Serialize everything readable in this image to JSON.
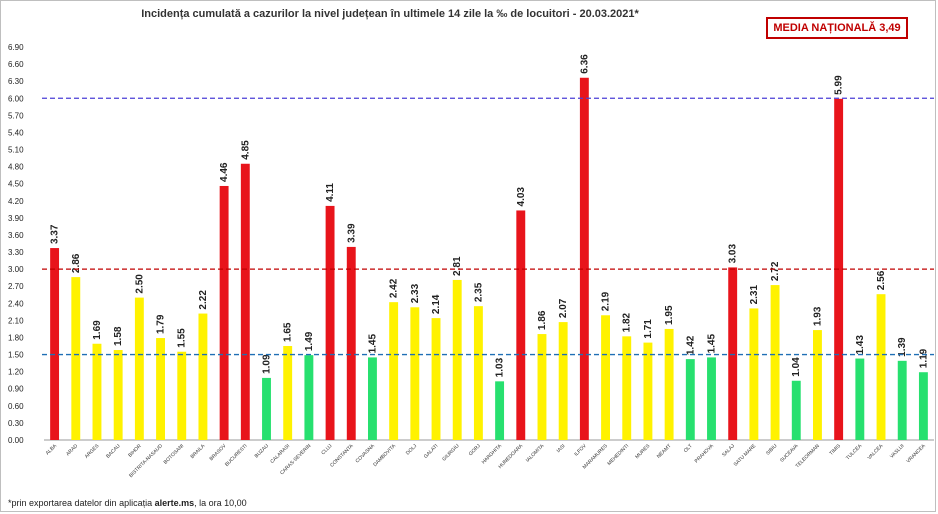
{
  "chart_data": {
    "type": "bar",
    "title": "Incidența cumulată a cazurilor la nivel județean în ultimele 14 zile la ‰ de locuitori - 20.03.2021*",
    "national_average_label": "MEDIA NAȚIONALĂ 3,49",
    "footnote_prefix": "*prin exportarea datelor din aplicația ",
    "footnote_app": "alerte.ms",
    "footnote_suffix": ", la ora 10,00",
    "ylim": [
      0,
      6.9
    ],
    "yticks": [
      "0.00",
      "0.30",
      "0.60",
      "0.90",
      "1.20",
      "1.50",
      "1.80",
      "2.10",
      "2.40",
      "2.70",
      "3.00",
      "3.30",
      "3.60",
      "3.90",
      "4.20",
      "4.50",
      "4.80",
      "5.10",
      "5.40",
      "5.70",
      "6.00",
      "6.30",
      "6.60",
      "6.90"
    ],
    "thresholds": [
      {
        "value": 6.0,
        "color": "#4b3fd6"
      },
      {
        "value": 3.0,
        "color": "#c00000"
      },
      {
        "value": 1.5,
        "color": "#1f6fb5"
      }
    ],
    "colors": {
      "red": "#e8141b",
      "yellow": "#fff200",
      "green": "#27e06f"
    },
    "categories": [
      "ALBA",
      "ARAD",
      "ARGES",
      "BACAU",
      "BIHOR",
      "BISTRITA-NASAUD",
      "BOTOSANI",
      "BRAILA",
      "BRASOV",
      "BUCURESTI",
      "BUZAU",
      "CALARASI",
      "CARAS-SEVERIN",
      "CLUJ",
      "CONSTANTA",
      "COVASNA",
      "DAMBOVITA",
      "DOLJ",
      "GALATI",
      "GIURGIU",
      "GORJ",
      "HARGHITA",
      "HUNEDOARA",
      "IALOMITA",
      "IASI",
      "ILFOV",
      "MARAMURES",
      "MEHEDINTI",
      "MURES",
      "NEAMT",
      "OLT",
      "PRAHOVA",
      "SALAJ",
      "SATU MARE",
      "SIBIU",
      "SUCEAVA",
      "TELEORMAN",
      "TIMIS",
      "TULCEA",
      "VALCEA",
      "VASLUI",
      "VRANCEA"
    ],
    "values": [
      3.37,
      2.86,
      1.69,
      1.58,
      2.5,
      1.79,
      1.55,
      2.22,
      4.46,
      4.85,
      1.09,
      1.65,
      1.49,
      4.11,
      3.39,
      1.45,
      2.42,
      2.33,
      2.14,
      2.81,
      2.35,
      1.03,
      4.03,
      1.86,
      2.07,
      6.36,
      2.19,
      1.82,
      1.71,
      1.95,
      1.42,
      1.45,
      3.03,
      2.31,
      2.72,
      1.04,
      1.93,
      5.99,
      1.43,
      2.56,
      1.39,
      1.19
    ],
    "value_labels": [
      "3.37",
      "2.86",
      "1.69",
      "1.58",
      "2.50",
      "1.79",
      "1.55",
      "2.22",
      "4.46",
      "4.85",
      "1.09",
      "1.65",
      "1.49",
      "4.11",
      "3.39",
      "1.45",
      "2.42",
      "2.33",
      "2.14",
      "2.81",
      "2.35",
      "1.03",
      "4.03",
      "1.86",
      "2.07",
      "6.36",
      "2.19",
      "1.82",
      "1.71",
      "1.95",
      "1.42",
      "1.45",
      "3.03",
      "2.31",
      "2.72",
      "1.04",
      "1.93",
      "5.99",
      "1.43",
      "2.56",
      "1.39",
      "1.19"
    ],
    "bar_colors": [
      "red",
      "yellow",
      "yellow",
      "yellow",
      "yellow",
      "yellow",
      "yellow",
      "yellow",
      "red",
      "red",
      "green",
      "yellow",
      "green",
      "red",
      "red",
      "green",
      "yellow",
      "yellow",
      "yellow",
      "yellow",
      "yellow",
      "green",
      "red",
      "yellow",
      "yellow",
      "red",
      "yellow",
      "yellow",
      "yellow",
      "yellow",
      "green",
      "green",
      "red",
      "yellow",
      "yellow",
      "green",
      "yellow",
      "red",
      "green",
      "yellow",
      "green",
      "green"
    ],
    "grid": false,
    "legend": "none"
  }
}
